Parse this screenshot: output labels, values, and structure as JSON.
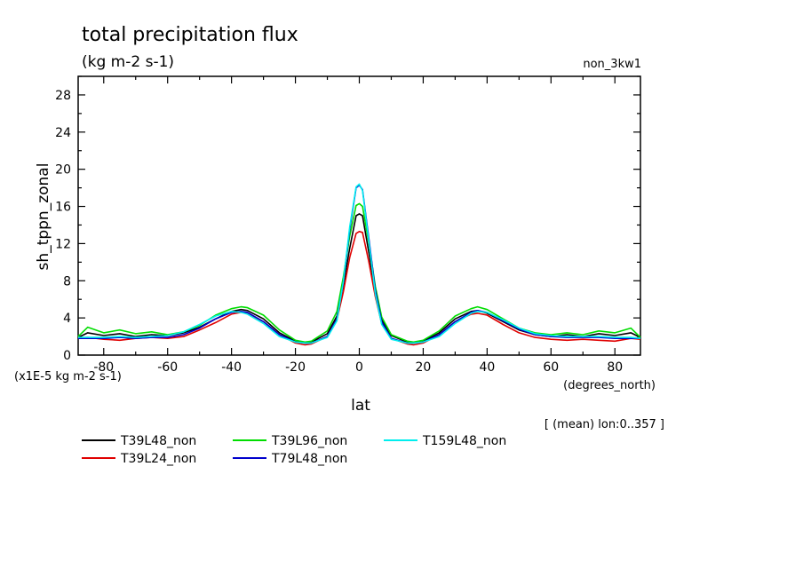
{
  "header": {
    "title": "total precipitation flux",
    "units": "(kg m-2 s-1)",
    "experiment": "non_3kw1"
  },
  "annotations": {
    "scale_note": "(x1E-5 kg m-2 s-1)",
    "x_units": "(degrees_north)",
    "mean_note": "[ (mean) lon:0..357 ]"
  },
  "chart_data": {
    "type": "line",
    "title": "total precipitation flux",
    "subtitle": "(kg m-2 s-1)",
    "xlabel": "lat",
    "ylabel": "sh_tppn_zonal",
    "xlim": [
      -88,
      88
    ],
    "ylim": [
      0,
      30
    ],
    "x_ticks": [
      -80,
      -60,
      -40,
      -20,
      0,
      20,
      40,
      60,
      80
    ],
    "x_tick_labels": [
      "-80",
      "-60",
      "-40",
      "-20",
      "0",
      "20",
      "40",
      "60",
      "80"
    ],
    "y_ticks": [
      0,
      4,
      8,
      12,
      16,
      20,
      24,
      28
    ],
    "y_tick_labels": [
      "0",
      "4",
      "8",
      "12",
      "16",
      "20",
      "24",
      "28"
    ],
    "grid": false,
    "legend_position": "bottom",
    "x": [
      -88,
      -85,
      -80,
      -75,
      -70,
      -65,
      -60,
      -55,
      -50,
      -45,
      -40,
      -37,
      -35,
      -30,
      -25,
      -20,
      -17,
      -15,
      -10,
      -7,
      -5,
      -3,
      -1,
      0,
      1,
      3,
      5,
      7,
      10,
      15,
      17,
      20,
      25,
      30,
      35,
      37,
      40,
      45,
      50,
      55,
      60,
      65,
      70,
      75,
      80,
      85,
      88
    ],
    "series": [
      {
        "name": "T39L48_non",
        "color": "#000000",
        "values": [
          1.9,
          2.4,
          2.1,
          2.3,
          2.0,
          2.2,
          2.1,
          2.4,
          3.0,
          3.9,
          4.7,
          4.9,
          4.8,
          3.9,
          2.4,
          1.5,
          1.3,
          1.4,
          2.3,
          4.2,
          7.5,
          11.5,
          15.0,
          15.2,
          15.0,
          11.0,
          6.8,
          3.8,
          2.1,
          1.4,
          1.3,
          1.5,
          2.4,
          3.9,
          4.7,
          4.8,
          4.5,
          3.6,
          2.7,
          2.2,
          2.0,
          2.2,
          2.0,
          2.3,
          2.1,
          2.4,
          1.9
        ]
      },
      {
        "name": "T39L24_non",
        "color": "#e00000",
        "values": [
          1.8,
          1.9,
          1.7,
          1.6,
          1.8,
          1.9,
          1.8,
          2.0,
          2.7,
          3.5,
          4.4,
          4.6,
          4.5,
          3.6,
          2.2,
          1.3,
          1.1,
          1.2,
          2.0,
          3.8,
          6.8,
          10.5,
          13.1,
          13.3,
          13.2,
          10.0,
          6.3,
          3.4,
          1.8,
          1.2,
          1.1,
          1.3,
          2.2,
          3.6,
          4.4,
          4.5,
          4.3,
          3.3,
          2.4,
          1.9,
          1.7,
          1.6,
          1.7,
          1.6,
          1.5,
          1.8,
          1.7
        ]
      },
      {
        "name": "T39L96_non",
        "color": "#00dd00",
        "values": [
          2.0,
          3.0,
          2.4,
          2.7,
          2.3,
          2.5,
          2.2,
          2.5,
          3.2,
          4.3,
          5.0,
          5.2,
          5.1,
          4.3,
          2.7,
          1.6,
          1.4,
          1.5,
          2.6,
          4.7,
          8.4,
          12.8,
          16.1,
          16.3,
          16.0,
          12.0,
          7.4,
          4.1,
          2.2,
          1.5,
          1.4,
          1.6,
          2.6,
          4.2,
          5.0,
          5.2,
          4.9,
          3.9,
          2.9,
          2.4,
          2.2,
          2.4,
          2.2,
          2.6,
          2.4,
          2.9,
          1.9
        ]
      },
      {
        "name": "T79L48_non",
        "color": "#0000cc",
        "values": [
          1.8,
          1.8,
          1.8,
          1.9,
          1.8,
          1.9,
          1.9,
          2.2,
          2.9,
          3.9,
          4.6,
          4.7,
          4.6,
          3.6,
          2.2,
          1.4,
          1.3,
          1.3,
          2.0,
          3.9,
          7.8,
          13.5,
          18.0,
          18.3,
          17.8,
          12.5,
          7.0,
          3.6,
          1.8,
          1.3,
          1.3,
          1.4,
          2.2,
          3.6,
          4.6,
          4.8,
          4.6,
          3.7,
          2.8,
          2.2,
          2.0,
          1.9,
          1.9,
          1.9,
          1.8,
          1.8,
          1.8
        ]
      },
      {
        "name": "T159L48_non",
        "color": "#00eeee",
        "values": [
          1.9,
          1.9,
          1.9,
          2.0,
          1.9,
          2.0,
          2.1,
          2.5,
          3.3,
          4.2,
          4.7,
          4.6,
          4.4,
          3.4,
          2.0,
          1.4,
          1.3,
          1.3,
          1.9,
          3.7,
          7.9,
          13.8,
          18.1,
          18.4,
          17.7,
          12.2,
          6.6,
          3.3,
          1.7,
          1.3,
          1.3,
          1.4,
          2.0,
          3.4,
          4.5,
          4.7,
          4.6,
          3.8,
          2.9,
          2.3,
          2.1,
          2.0,
          2.0,
          2.0,
          1.9,
          1.9,
          1.8
        ]
      }
    ]
  }
}
